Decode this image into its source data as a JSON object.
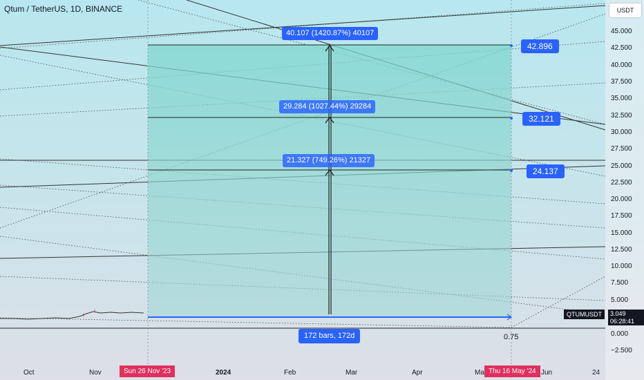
{
  "chart": {
    "title": "Qtum / TetherUS, 1D, BINANCE",
    "currency_button": "USDT",
    "y_ticks": [
      "45.000",
      "42.500",
      "40.000",
      "37.500",
      "35.000",
      "32.500",
      "30.000",
      "27.500",
      "25.000",
      "22.500",
      "20.000",
      "17.500",
      "15.000",
      "12.500",
      "10.000",
      "7.500",
      "5.000",
      "0.000",
      "−2.500"
    ],
    "x_ticks": [
      "Oct",
      "Nov",
      "2024",
      "Feb",
      "Mar",
      "Apr",
      "Ma",
      "Jun",
      "24"
    ],
    "range_start_date": "Sun 26 Nov '23",
    "range_end_date": "Thu 16 May '24",
    "ticker": {
      "symbol": "QTUMUSDT",
      "price": "3.049",
      "countdown": "06:28:41"
    },
    "measurements": {
      "top": "40.107 (1420.87%) 40107",
      "middle": "29.284 (1027.44%) 29284",
      "lower": "21.327 (749.26%) 21327",
      "bars": "172 bars, 172d"
    },
    "targets": [
      {
        "label": "42.896",
        "value": 42.896
      },
      {
        "label": "32.121",
        "value": 32.121
      },
      {
        "label": "24.137",
        "value": 24.137
      }
    ],
    "fib_level": "0.75",
    "colors": {
      "accent": "#2962ff",
      "date_highlight": "#e0305f",
      "box_fill": "#7fd0c8"
    }
  }
}
